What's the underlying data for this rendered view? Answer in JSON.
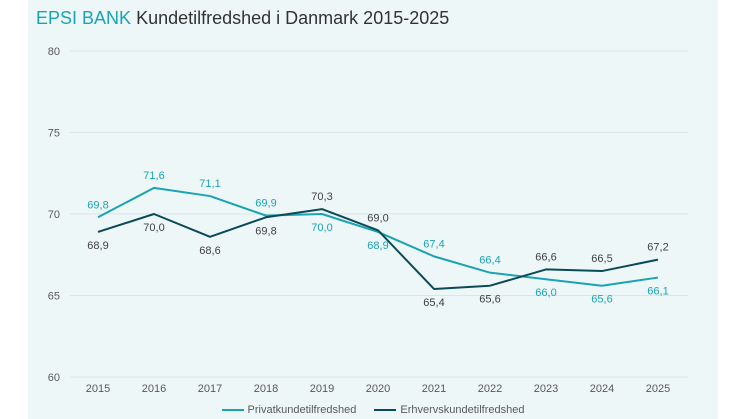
{
  "header": {
    "brand": "EPSI BANK",
    "title": "Kundetilfredshed i Danmark 2015-2025"
  },
  "colors": {
    "private": "#19a3b3",
    "business": "#0b4a57",
    "grid": "#d9e6e8",
    "axis_text": "#595959",
    "business_label": "#404040"
  },
  "chart_data": {
    "type": "line",
    "title": "EPSI BANK Kundetilfredshed i Danmark 2015-2025",
    "x": [
      "2015",
      "2016",
      "2017",
      "2018",
      "2019",
      "2020",
      "2021",
      "2022",
      "2023",
      "2024",
      "2025"
    ],
    "ylim": [
      60,
      80
    ],
    "yticks": [
      60,
      65,
      70,
      75,
      80
    ],
    "grid": true,
    "legend_placement": "bottom",
    "series": [
      {
        "name": "Privatkundetilfredshed",
        "key": "private",
        "values": [
          69.8,
          71.6,
          71.1,
          69.9,
          70.0,
          68.9,
          67.4,
          66.4,
          66.0,
          65.6,
          66.1
        ],
        "labels": [
          "69,8",
          "71,6",
          "71,1",
          "69,9",
          "70,0",
          "68,9",
          "67,4",
          "66,4",
          "66,0",
          "65,6",
          "66,1"
        ]
      },
      {
        "name": "Erhvervskundetilfredshed",
        "key": "business",
        "values": [
          68.9,
          70.0,
          68.6,
          69.8,
          70.3,
          69.0,
          65.4,
          65.6,
          66.6,
          66.5,
          67.2
        ],
        "labels": [
          "68,9",
          "70,0",
          "68,6",
          "69,8",
          "70,3",
          "69,0",
          "65,4",
          "65,6",
          "66,6",
          "66,5",
          "67,2"
        ]
      }
    ]
  }
}
